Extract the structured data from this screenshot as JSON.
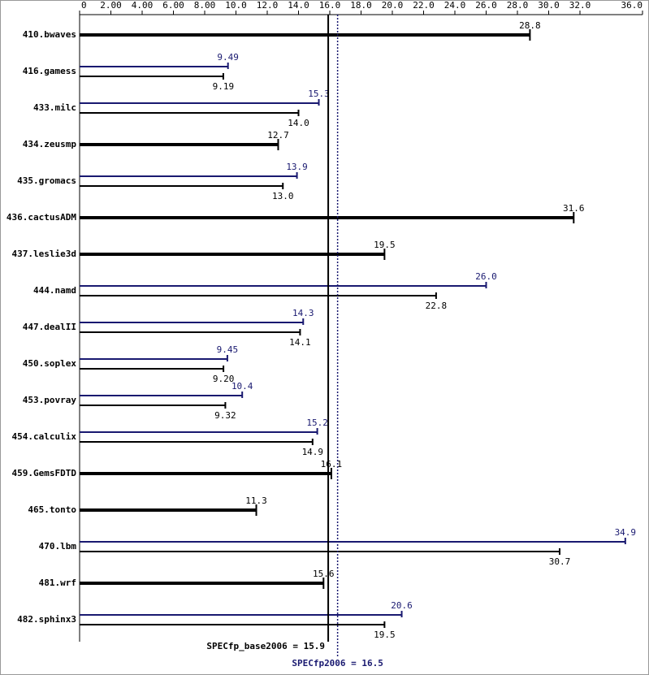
{
  "chart_data": {
    "type": "bar",
    "categories": [
      "410.bwaves",
      "416.gamess",
      "433.milc",
      "434.zeusmp",
      "435.gromacs",
      "436.cactusADM",
      "437.leslie3d",
      "444.namd",
      "447.dealII",
      "450.soplex",
      "453.povray",
      "454.calculix",
      "459.GemsFDTD",
      "465.tonto",
      "470.lbm",
      "481.wrf",
      "482.sphinx3"
    ],
    "series": [
      {
        "color": "#000000",
        "values": [
          28.8,
          9.19,
          14.0,
          12.7,
          13.0,
          31.6,
          19.5,
          22.8,
          14.1,
          9.2,
          9.32,
          14.9,
          16.1,
          11.3,
          30.7,
          15.6,
          19.5
        ],
        "value_labels": [
          "28.8",
          "9.19",
          "14.0",
          "12.7",
          "13.0",
          "31.6",
          "19.5",
          "22.8",
          "14.1",
          "9.20",
          "9.32",
          "14.9",
          "16.1",
          "11.3",
          "30.7",
          "15.6",
          "19.5"
        ]
      },
      {
        "color": "#191970",
        "values": [
          null,
          9.49,
          15.3,
          null,
          13.9,
          null,
          null,
          26.0,
          14.3,
          9.45,
          10.4,
          15.2,
          null,
          null,
          34.9,
          null,
          20.6
        ],
        "value_labels": [
          null,
          "9.49",
          "15.3",
          null,
          "13.9",
          null,
          null,
          "26.0",
          "14.3",
          "9.45",
          "10.4",
          "15.2",
          null,
          null,
          "34.9",
          null,
          "20.6"
        ]
      }
    ],
    "xlim": [
      0,
      36
    ],
    "xticks": [
      0,
      {
        "value": 2,
        "label": "2.00"
      },
      {
        "value": 4,
        "label": "4.00"
      },
      {
        "value": 6,
        "label": "6.00"
      },
      {
        "value": 8,
        "label": "8.00"
      },
      {
        "value": 10,
        "label": "10.0"
      },
      {
        "value": 12,
        "label": "12.0"
      },
      {
        "value": 14,
        "label": "14.0"
      },
      {
        "value": 16,
        "label": "16.0"
      },
      {
        "value": 18,
        "label": "18.0"
      },
      {
        "value": 20,
        "label": "20.0"
      },
      {
        "value": 22,
        "label": "22.0"
      },
      {
        "value": 24,
        "label": "24.0"
      },
      {
        "value": 26,
        "label": "26.0"
      },
      {
        "value": 28,
        "label": "28.0"
      },
      {
        "value": 30,
        "label": "30.0"
      },
      {
        "value": 32,
        "label": "32.0"
      },
      {
        "value": 36,
        "label": "36.0"
      }
    ],
    "reference_lines": [
      {
        "label": "SPECfp_base2006 = 15.9",
        "value": 15.9,
        "color": "#000000"
      },
      {
        "label": "SPECfp2006 = 16.5",
        "value": 16.5,
        "color": "#191970"
      }
    ]
  }
}
